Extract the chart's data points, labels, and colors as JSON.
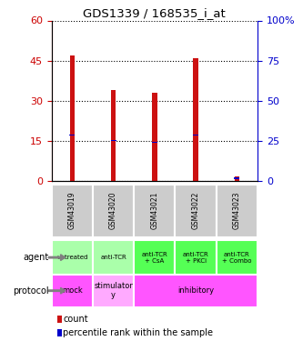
{
  "title": "GDS1339 / 168535_i_at",
  "samples": [
    "GSM43019",
    "GSM43020",
    "GSM43021",
    "GSM43022",
    "GSM43023"
  ],
  "count_values": [
    47,
    34,
    33,
    46,
    1.5
  ],
  "percentile_values": [
    28.5,
    25,
    24,
    28.5,
    1.5
  ],
  "left_ylim": [
    0,
    60
  ],
  "left_yticks": [
    0,
    15,
    30,
    45,
    60
  ],
  "right_ylim": [
    0,
    100
  ],
  "right_yticks": [
    0,
    25,
    50,
    75,
    100
  ],
  "right_yticklabels": [
    "0",
    "25",
    "50",
    "75",
    "100%"
  ],
  "bar_color": "#cc1111",
  "percentile_color": "#0000cc",
  "bar_width": 0.12,
  "agent_labels": [
    "untreated",
    "anti-TCR",
    "anti-TCR\n+ CsA",
    "anti-TCR\n+ PKCi",
    "anti-TCR\n+ Combo"
  ],
  "agent_colors": [
    "#aaffaa",
    "#aaffaa",
    "#55ff55",
    "#55ff55",
    "#55ff55"
  ],
  "protocol_spans": [
    {
      "label": "mock",
      "start": 0,
      "end": 1,
      "color": "#ff55ff"
    },
    {
      "label": "stimulator\ny",
      "start": 1,
      "end": 2,
      "color": "#ffaaff"
    },
    {
      "label": "inhibitory",
      "start": 2,
      "end": 5,
      "color": "#ff55ff"
    }
  ],
  "sample_bg_color": "#cccccc",
  "left_axis_color": "#cc0000",
  "right_axis_color": "#0000cc"
}
